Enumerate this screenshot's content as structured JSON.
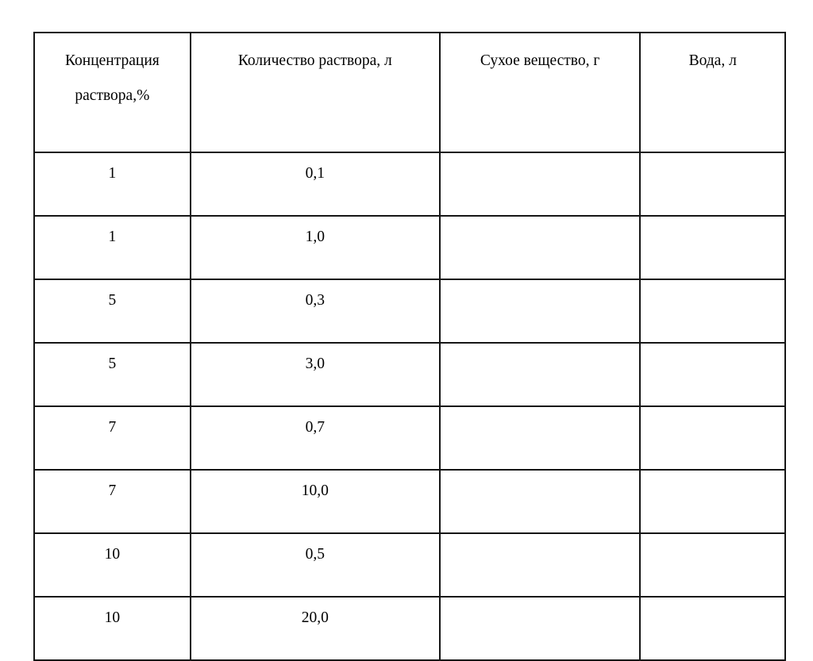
{
  "page": {
    "background_color": "#ffffff",
    "text_color": "#000000",
    "border_color": "#161616"
  },
  "table": {
    "headers": [
      "Концентрация раствора,%",
      "Количество раствора, л",
      "Сухое вещество, г",
      "Вода, л"
    ],
    "rows": [
      [
        "1",
        "0,1",
        "",
        ""
      ],
      [
        "1",
        "1,0",
        "",
        ""
      ],
      [
        "5",
        "0,3",
        "",
        ""
      ],
      [
        "5",
        "3,0",
        "",
        ""
      ],
      [
        "7",
        "0,7",
        "",
        ""
      ],
      [
        "7",
        "10,0",
        "",
        ""
      ],
      [
        "10",
        "0,5",
        "",
        ""
      ],
      [
        "10",
        "20,0",
        "",
        ""
      ]
    ]
  },
  "chart_data": {
    "type": "table",
    "title": "",
    "columns": [
      "Концентрация раствора,%",
      "Количество раствора, л",
      "Сухое вещество, г",
      "Вода, л"
    ],
    "rows": [
      {
        "концентрация": 1,
        "количество_л": "0,1",
        "сухое_вещество_г": "",
        "вода_л": ""
      },
      {
        "концентрация": 1,
        "количество_л": "1,0",
        "сухое_вещество_г": "",
        "вода_л": ""
      },
      {
        "концентрация": 5,
        "количество_л": "0,3",
        "сухое_вещество_г": "",
        "вода_л": ""
      },
      {
        "концентрация": 5,
        "количество_л": "3,0",
        "сухое_вещество_г": "",
        "вода_л": ""
      },
      {
        "концентрация": 7,
        "количество_л": "0,7",
        "сухое_вещество_г": "",
        "вода_л": ""
      },
      {
        "концентрация": 7,
        "количество_л": "10,0",
        "сухое_вещество_г": "",
        "вода_л": ""
      },
      {
        "концентрация": 10,
        "количество_л": "0,5",
        "сухое_вещество_г": "",
        "вода_л": ""
      },
      {
        "концентрация": 10,
        "количество_л": "20,0",
        "сухое_вещество_г": "",
        "вода_л": ""
      }
    ]
  }
}
